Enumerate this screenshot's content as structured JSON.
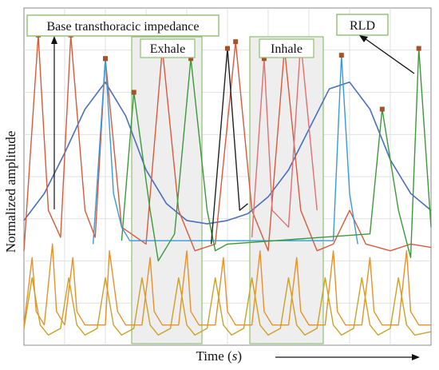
{
  "chart_data": {
    "type": "line",
    "xlabel": "Time",
    "xlabel_unit": "s",
    "ylabel": "Normalized amplitude",
    "grid": true,
    "annotations": {
      "impedance_box": "Base transthoracic impedance",
      "exhale_box": "Exhale",
      "inhale_box": "Inhale",
      "rld_box": "RLD"
    },
    "series": [
      {
        "color": "#4a6fbf",
        "x": [
          0.0,
          0.05,
          0.1,
          0.15,
          0.2,
          0.25,
          0.3,
          0.35,
          0.4,
          0.45,
          0.5,
          0.55,
          0.6,
          0.65,
          0.7,
          0.75,
          0.8,
          0.85,
          0.9,
          0.95,
          1.0
        ],
        "y": [
          0.37,
          0.45,
          0.57,
          0.7,
          0.78,
          0.68,
          0.52,
          0.42,
          0.37,
          0.36,
          0.37,
          0.39,
          0.44,
          0.52,
          0.64,
          0.76,
          0.78,
          0.7,
          0.55,
          0.45,
          0.4
        ]
      },
      {
        "color": "#c9a227",
        "x": [
          0.0,
          0.02,
          0.04,
          0.06,
          0.09,
          0.11,
          0.13,
          0.15,
          0.18,
          0.2,
          0.22,
          0.24,
          0.27,
          0.29,
          0.31,
          0.33,
          0.36,
          0.38,
          0.4,
          0.42,
          0.45,
          0.47,
          0.49,
          0.51,
          0.54,
          0.56,
          0.58,
          0.6,
          0.63,
          0.65,
          0.67,
          0.69,
          0.72,
          0.74,
          0.76,
          0.78,
          0.81,
          0.83,
          0.85,
          0.87,
          0.9,
          0.92,
          0.94,
          0.96,
          1.0
        ],
        "y": [
          0.05,
          0.2,
          0.06,
          0.03,
          0.05,
          0.2,
          0.06,
          0.03,
          0.05,
          0.2,
          0.06,
          0.03,
          0.05,
          0.2,
          0.06,
          0.03,
          0.05,
          0.2,
          0.06,
          0.03,
          0.05,
          0.2,
          0.06,
          0.03,
          0.05,
          0.2,
          0.06,
          0.03,
          0.05,
          0.2,
          0.06,
          0.03,
          0.05,
          0.2,
          0.06,
          0.03,
          0.05,
          0.2,
          0.06,
          0.03,
          0.05,
          0.2,
          0.06,
          0.03,
          0.04
        ]
      },
      {
        "color": "#e8902a",
        "x": [
          0.0,
          0.02,
          0.03,
          0.05,
          0.07,
          0.08,
          0.1,
          0.12,
          0.13,
          0.15,
          0.2,
          0.21,
          0.23,
          0.25,
          0.29,
          0.31,
          0.32,
          0.34,
          0.38,
          0.4,
          0.41,
          0.43,
          0.47,
          0.49,
          0.5,
          0.52,
          0.56,
          0.58,
          0.59,
          0.61,
          0.65,
          0.67,
          0.68,
          0.7,
          0.74,
          0.76,
          0.77,
          0.79,
          0.83,
          0.85,
          0.86,
          0.88,
          0.92,
          0.94,
          0.95,
          0.97,
          1.0
        ],
        "y": [
          0.06,
          0.26,
          0.1,
          0.06,
          0.3,
          0.1,
          0.06,
          0.26,
          0.1,
          0.06,
          0.06,
          0.28,
          0.1,
          0.06,
          0.06,
          0.26,
          0.1,
          0.06,
          0.06,
          0.28,
          0.1,
          0.06,
          0.06,
          0.26,
          0.1,
          0.06,
          0.06,
          0.28,
          0.1,
          0.06,
          0.06,
          0.26,
          0.1,
          0.06,
          0.06,
          0.28,
          0.1,
          0.06,
          0.06,
          0.26,
          0.1,
          0.06,
          0.06,
          0.28,
          0.1,
          0.06,
          0.06
        ]
      },
      {
        "color": "#d9593a",
        "x": [
          0.0,
          0.035,
          0.06,
          0.075,
          0.09,
          0.115,
          0.15,
          0.175,
          0.2,
          0.24,
          0.3,
          0.34,
          0.38,
          0.42,
          0.47,
          0.52,
          0.56,
          0.6,
          0.64,
          0.68,
          0.72,
          0.76,
          0.8,
          0.84,
          0.9,
          0.95,
          1.0
        ],
        "y": [
          0.28,
          0.92,
          0.4,
          0.36,
          0.32,
          0.92,
          0.4,
          0.32,
          0.85,
          0.35,
          0.3,
          0.88,
          0.4,
          0.28,
          0.3,
          0.9,
          0.4,
          0.28,
          0.88,
          0.4,
          0.28,
          0.3,
          0.4,
          0.3,
          0.28,
          0.3,
          0.29
        ]
      },
      {
        "color": "#3a9ad9",
        "x": [
          0.17,
          0.2,
          0.22,
          0.24,
          0.26,
          0.76,
          0.78,
          0.8,
          0.82
        ],
        "y": [
          0.3,
          0.85,
          0.45,
          0.35,
          0.31,
          0.31,
          0.86,
          0.45,
          0.3
        ]
      },
      {
        "color": "#3a9a3a",
        "x": [
          0.24,
          0.27,
          0.31,
          0.33,
          0.37,
          0.41,
          0.45,
          0.47,
          0.5,
          0.85,
          0.88,
          0.92,
          0.95,
          0.97,
          1.0
        ],
        "y": [
          0.31,
          0.75,
          0.4,
          0.25,
          0.33,
          0.85,
          0.4,
          0.28,
          0.3,
          0.33,
          0.7,
          0.4,
          0.26,
          0.88,
          0.35
        ]
      },
      {
        "color": "#222222",
        "x": [
          0.46,
          0.5,
          0.53,
          0.55
        ],
        "y": [
          0.3,
          0.88,
          0.4,
          0.42
        ]
      },
      {
        "color": "#e06f6f",
        "x": [
          0.56,
          0.59,
          0.61,
          0.65,
          0.68,
          0.72
        ],
        "y": [
          0.32,
          0.85,
          0.4,
          0.35,
          0.9,
          0.4
        ]
      }
    ]
  }
}
